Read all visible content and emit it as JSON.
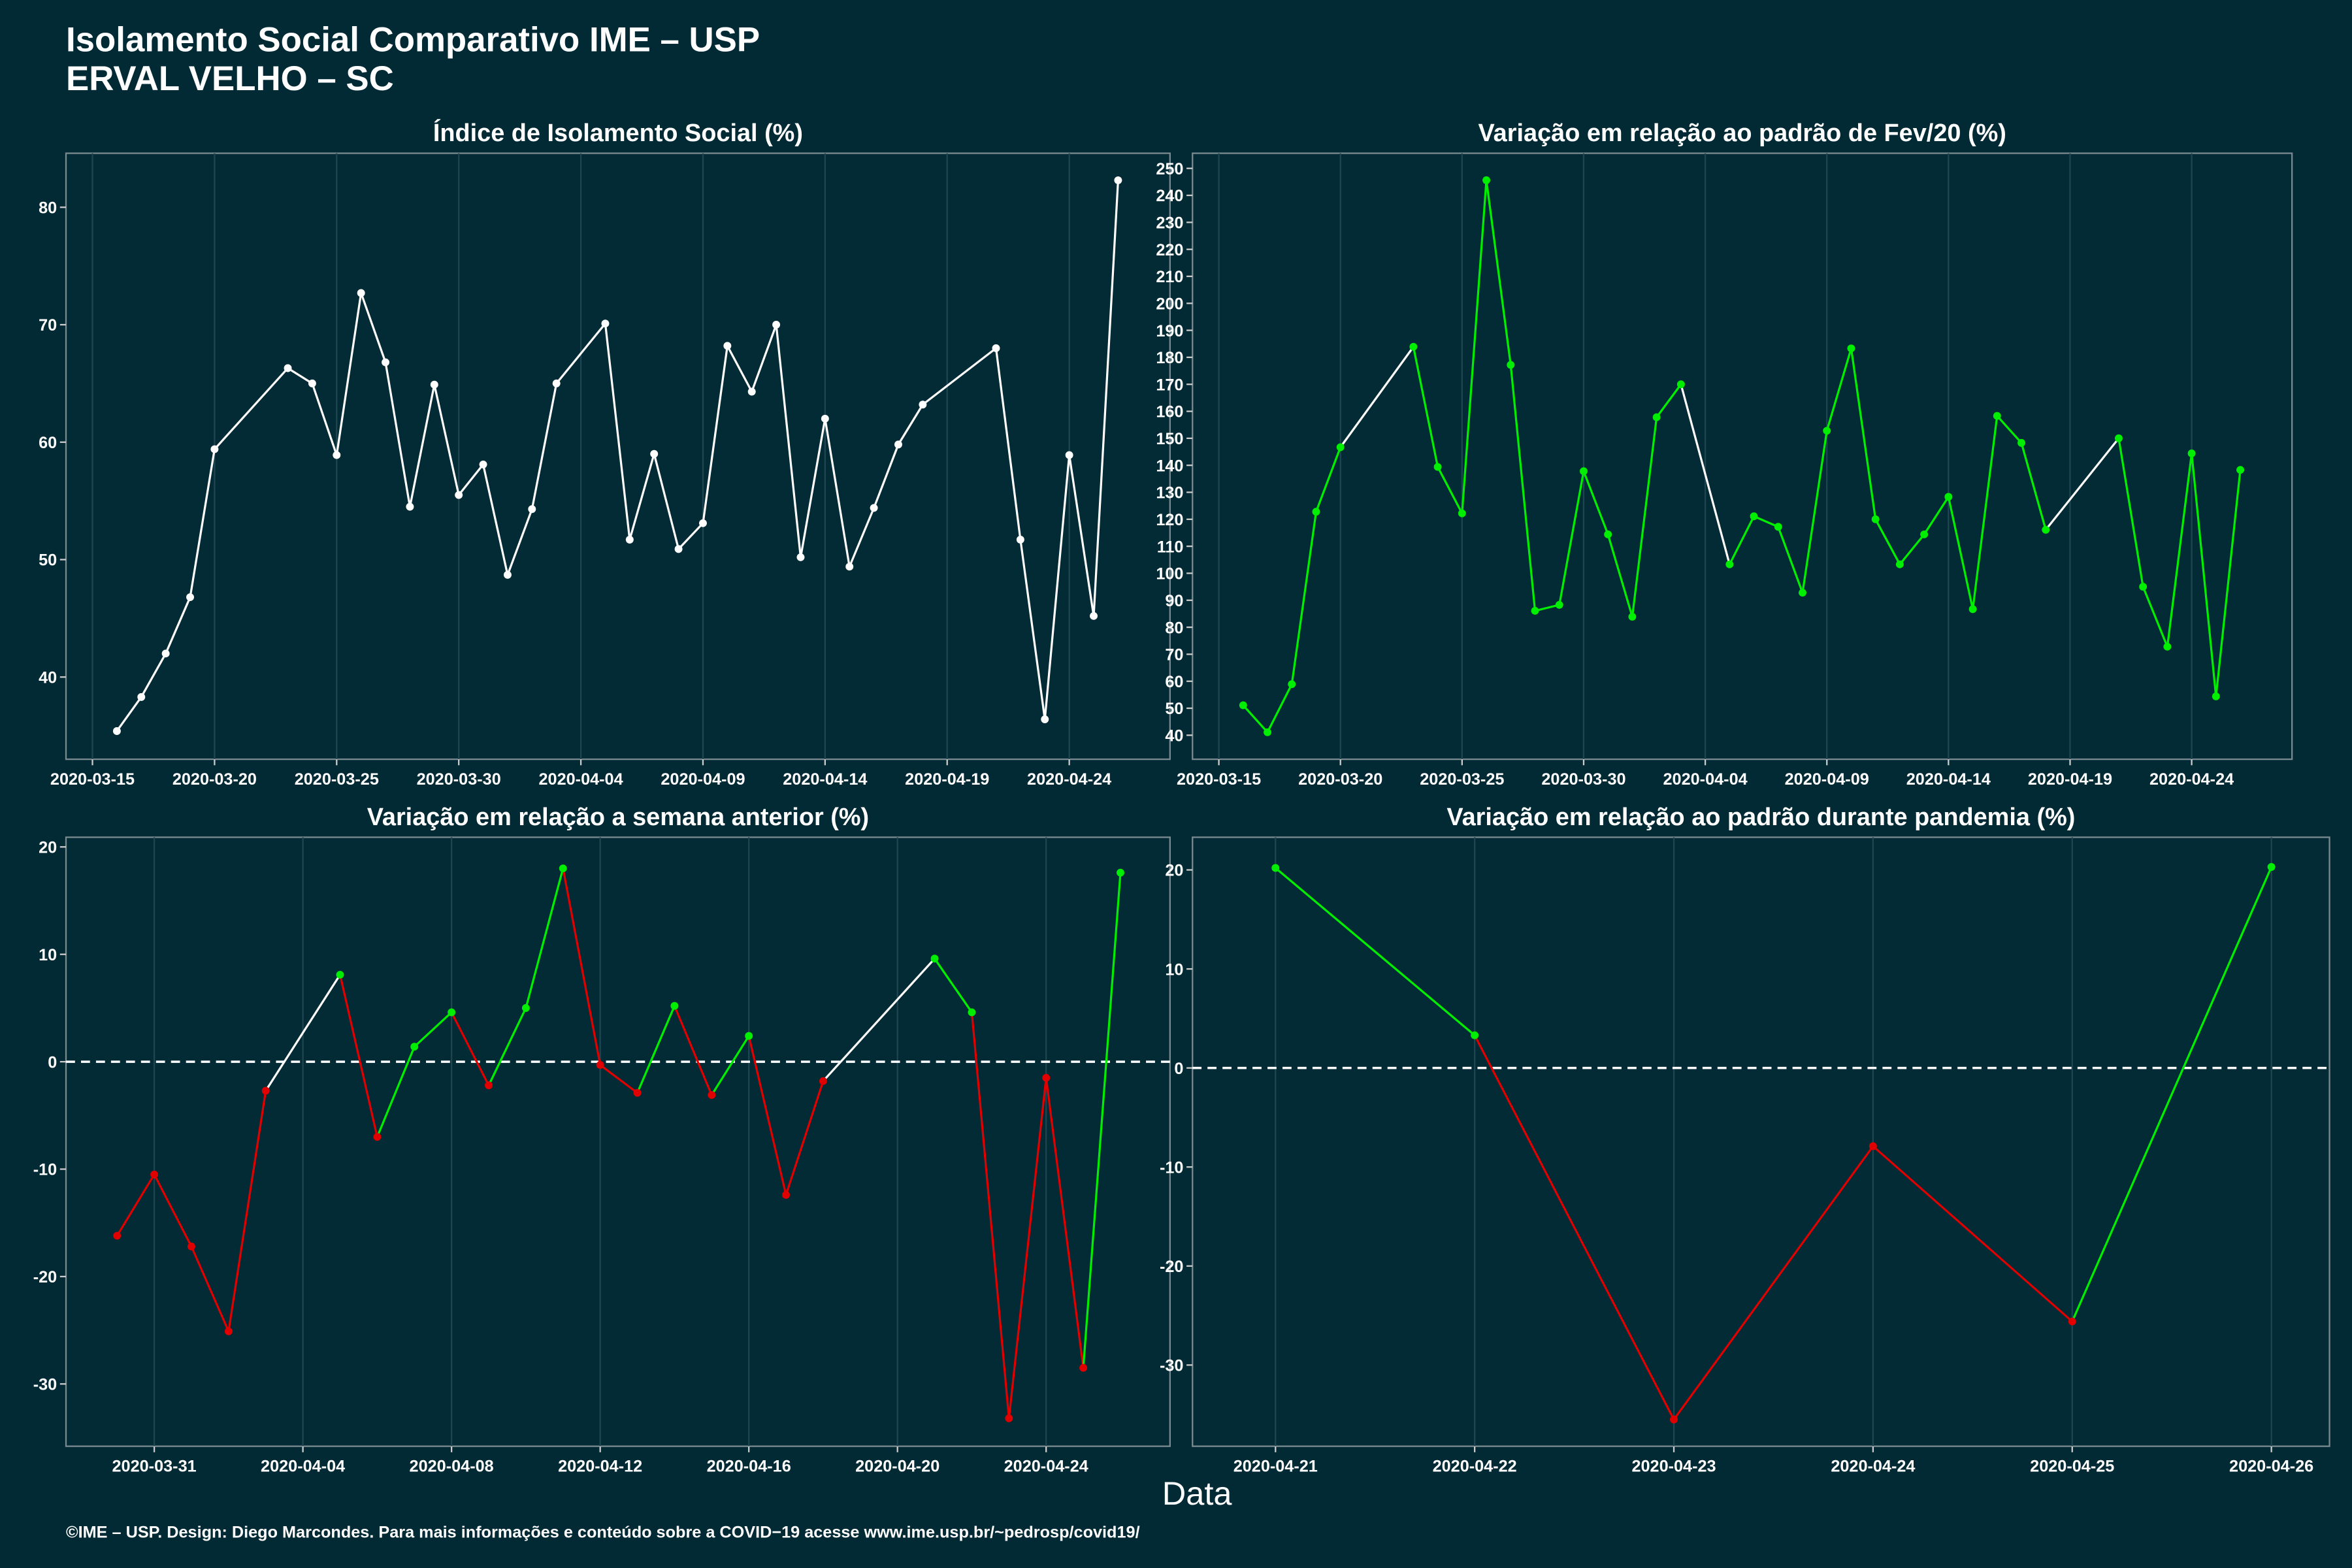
{
  "title": "Isolamento Social Comparativo IME – USP",
  "subtitle": "ERVAL VELHO – SC",
  "xlabel": "Data",
  "caption": "©IME – USP. Design: Diego Marcondes. Para mais informações e conteúdo sobre a COVID−19 acesse www.ime.usp.br/~pedrosp/covid19/",
  "chart_data": [
    {
      "type": "line",
      "title": "Índice de Isolamento Social (%)",
      "x": [
        "2020-03-16",
        "2020-03-17",
        "2020-03-18",
        "2020-03-19",
        "2020-03-20",
        "2020-03-23",
        "2020-03-24",
        "2020-03-25",
        "2020-03-26",
        "2020-03-27",
        "2020-03-28",
        "2020-03-29",
        "2020-03-30",
        "2020-03-31",
        "2020-04-01",
        "2020-04-02",
        "2020-04-03",
        "2020-04-05",
        "2020-04-06",
        "2020-04-07",
        "2020-04-08",
        "2020-04-09",
        "2020-04-10",
        "2020-04-11",
        "2020-04-12",
        "2020-04-13",
        "2020-04-14",
        "2020-04-15",
        "2020-04-16",
        "2020-04-17",
        "2020-04-18",
        "2020-04-21",
        "2020-04-22",
        "2020-04-23",
        "2020-04-24",
        "2020-04-25",
        "2020-04-26"
      ],
      "values": [
        35.4,
        38.3,
        42.0,
        46.8,
        59.4,
        66.3,
        65.0,
        58.9,
        72.7,
        66.8,
        54.5,
        64.9,
        55.5,
        58.1,
        48.7,
        54.3,
        65.0,
        70.1,
        51.7,
        59.0,
        50.9,
        53.1,
        68.2,
        64.3,
        70.0,
        50.2,
        62.0,
        49.4,
        54.4,
        59.8,
        63.2,
        68.0,
        51.7,
        36.4,
        58.9,
        45.2,
        82.3
      ],
      "color": "#ffffff",
      "gap_color": "#ffffff",
      "xlim": [
        "2020-03-13T22:00",
        "2020-04-28T03:00"
      ],
      "xticks": [
        "2020-03-15",
        "2020-03-20",
        "2020-03-25",
        "2020-03-30",
        "2020-04-04",
        "2020-04-09",
        "2020-04-14",
        "2020-04-19",
        "2020-04-24"
      ],
      "ylim": [
        33.0,
        84.6
      ],
      "yticks": [
        40,
        50,
        60,
        70,
        80
      ],
      "grid": true
    },
    {
      "type": "line",
      "title": "Variação em relação ao padrão de Fev/20 (%)",
      "x": [
        "2020-03-16",
        "2020-03-17",
        "2020-03-18",
        "2020-03-19",
        "2020-03-20",
        "2020-03-23",
        "2020-03-24",
        "2020-03-25",
        "2020-03-26",
        "2020-03-27",
        "2020-03-28",
        "2020-03-29",
        "2020-03-30",
        "2020-03-31",
        "2020-04-01",
        "2020-04-02",
        "2020-04-03",
        "2020-04-05",
        "2020-04-06",
        "2020-04-07",
        "2020-04-08",
        "2020-04-09",
        "2020-04-10",
        "2020-04-11",
        "2020-04-12",
        "2020-04-13",
        "2020-04-14",
        "2020-04-15",
        "2020-04-16",
        "2020-04-17",
        "2020-04-18",
        "2020-04-21",
        "2020-04-22",
        "2020-04-23",
        "2020-04-24",
        "2020-04-25",
        "2020-04-26"
      ],
      "values": [
        51.1,
        41.1,
        58.9,
        122.8,
        146.7,
        183.9,
        139.4,
        122.2,
        245.6,
        177.2,
        86.1,
        88.3,
        137.8,
        114.4,
        83.9,
        157.8,
        170,
        103.3,
        121.1,
        117.2,
        92.8,
        152.8,
        183.3,
        120,
        103.3,
        114.4,
        128.3,
        86.7,
        158.3,
        148.3,
        116.1,
        150,
        95,
        72.8,
        144.4,
        54.4,
        138.3
      ],
      "color": "#00ee00",
      "gap_color": "#ffffff",
      "xlim": [
        "2020-03-13T22:00",
        "2020-04-28T03:00"
      ],
      "xticks": [
        "2020-03-15",
        "2020-03-20",
        "2020-03-25",
        "2020-03-30",
        "2020-04-04",
        "2020-04-09",
        "2020-04-14",
        "2020-04-19",
        "2020-04-24"
      ],
      "ylim": [
        31.1,
        255.6
      ],
      "yticks": [
        40,
        50,
        60,
        70,
        80,
        90,
        100,
        110,
        120,
        130,
        140,
        150,
        160,
        170,
        180,
        190,
        200,
        210,
        220,
        230,
        240,
        250
      ],
      "grid": true
    },
    {
      "type": "line",
      "title": "Variação em relação a semana anterior (%)",
      "x": [
        "2020-03-30",
        "2020-03-31",
        "2020-04-01",
        "2020-04-02",
        "2020-04-03",
        "2020-04-05",
        "2020-04-06",
        "2020-04-07",
        "2020-04-08",
        "2020-04-09",
        "2020-04-10",
        "2020-04-11",
        "2020-04-12",
        "2020-04-13",
        "2020-04-14",
        "2020-04-15",
        "2020-04-16",
        "2020-04-17",
        "2020-04-18",
        "2020-04-21",
        "2020-04-22",
        "2020-04-23",
        "2020-04-24",
        "2020-04-25",
        "2020-04-26"
      ],
      "values": [
        -16.2,
        -10.5,
        -17.2,
        -25.1,
        -2.7,
        8.1,
        -7.0,
        1.4,
        4.6,
        -2.2,
        5.0,
        18.0,
        -0.3,
        -2.9,
        5.2,
        -3.1,
        2.4,
        -12.4,
        -1.8,
        9.6,
        4.6,
        -33.2,
        -1.5,
        -28.5,
        17.6
      ],
      "colors": [
        "#e00000",
        "#e00000",
        "#e00000",
        "#e00000",
        "#e00000",
        "#00ee00",
        "#e00000",
        "#00ee00",
        "#00ee00",
        "#e00000",
        "#00ee00",
        "#00ee00",
        "#e00000",
        "#e00000",
        "#00ee00",
        "#e00000",
        "#00ee00",
        "#e00000",
        "#e00000",
        "#00ee00",
        "#00ee00",
        "#e00000",
        "#e00000",
        "#e00000",
        "#00ee00"
      ],
      "gap_color": "#ffffff",
      "hline": 0,
      "xlim": [
        "2020-03-28T15:00",
        "2020-04-27T08:00"
      ],
      "xticks": [
        "2020-03-31",
        "2020-04-04",
        "2020-04-08",
        "2020-04-12",
        "2020-04-16",
        "2020-04-20",
        "2020-04-24"
      ],
      "ylim": [
        -35.8,
        20.9
      ],
      "yticks": [
        -30,
        -20,
        -10,
        0,
        10,
        20
      ],
      "grid": true
    },
    {
      "type": "line",
      "title": "Variação em relação ao padrão durante pandemia (%)",
      "x": [
        "2020-04-21",
        "2020-04-22",
        "2020-04-23",
        "2020-04-24",
        "2020-04-25",
        "2020-04-26"
      ],
      "values": [
        20.2,
        3.3,
        -35.5,
        -7.9,
        -25.6,
        20.3
      ],
      "colors": [
        "#00ee00",
        "#00ee00",
        "#e00000",
        "#e00000",
        "#e00000",
        "#00ee00"
      ],
      "gap_color": "#ffffff",
      "hline": 0,
      "xlim": [
        "2020-04-20T14:00",
        "2020-04-26T07:00"
      ],
      "xticks": [
        "2020-04-21",
        "2020-04-22",
        "2020-04-23",
        "2020-04-24",
        "2020-04-25",
        "2020-04-26"
      ],
      "ylim": [
        -38.2,
        23.3
      ],
      "yticks": [
        -30,
        -20,
        -10,
        0,
        10,
        20
      ],
      "grid": true
    }
  ]
}
